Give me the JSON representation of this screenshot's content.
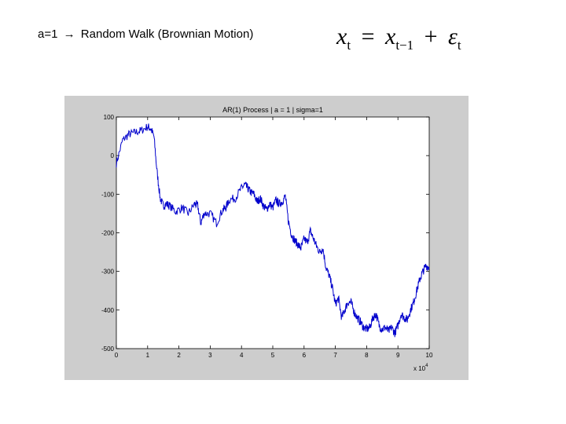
{
  "slide": {
    "heading_prefix": "a=1",
    "heading_arrow": "→",
    "heading_text": "Random Walk (Brownian Motion)",
    "formula": {
      "lhs_var": "x",
      "lhs_sub": "t",
      "equals": "=",
      "rhs_var": "x",
      "rhs_sub": "t−1",
      "plus": "+",
      "noise_var": "ε",
      "noise_sub": "t"
    }
  },
  "chart_data": {
    "type": "line",
    "title": "AR(1) Process    |    a = 1    |    sigma=1",
    "xlim": [
      0,
      100000
    ],
    "ylim": [
      -500,
      100
    ],
    "xticks": [
      0,
      1,
      2,
      3,
      4,
      5,
      6,
      7,
      8,
      9,
      10
    ],
    "yticks": [
      100,
      0,
      -100,
      -200,
      -300,
      -400,
      -500
    ],
    "x_exponent_label": "x 10",
    "x_exponent_power": "4",
    "line_color": "#0000cc",
    "grid": false,
    "series": [
      {
        "x": [
          0,
          2000,
          4000,
          6000,
          8000,
          10000,
          11000,
          12000,
          13000,
          14000,
          15000,
          16000,
          17000,
          19000,
          21000,
          23000,
          25000,
          26000,
          27000,
          28000,
          30000,
          32000,
          34000,
          35000,
          36000,
          38000,
          40000,
          41000,
          42000,
          43000,
          44000,
          45000,
          46000,
          47000,
          48000,
          49000,
          50000,
          51000,
          52000,
          53000,
          54000,
          55000,
          56000,
          57000,
          58000,
          59000,
          60000,
          61000,
          62000,
          63000,
          64000,
          65000,
          66000,
          67000,
          68000,
          69000,
          70000,
          71000,
          72000,
          73000,
          74000,
          75000,
          76000,
          77000,
          78000,
          79000,
          80000,
          81000,
          82000,
          83000,
          84000,
          85000,
          86000,
          87000,
          88000,
          89000,
          90000,
          91000,
          92000,
          93000,
          94000,
          95000,
          96000,
          97000,
          98000,
          99000,
          100000
        ],
        "y": [
          -20,
          40,
          55,
          60,
          65,
          75,
          70,
          50,
          -40,
          -110,
          -130,
          -125,
          -130,
          -145,
          -135,
          -150,
          -125,
          -130,
          -175,
          -150,
          -150,
          -175,
          -140,
          -135,
          -115,
          -110,
          -85,
          -75,
          -85,
          -95,
          -100,
          -120,
          -110,
          -130,
          -140,
          -125,
          -135,
          -115,
          -125,
          -120,
          -105,
          -170,
          -205,
          -220,
          -230,
          -240,
          -215,
          -225,
          -195,
          -215,
          -235,
          -250,
          -240,
          -290,
          -310,
          -340,
          -385,
          -370,
          -420,
          -400,
          -380,
          -380,
          -405,
          -420,
          -430,
          -445,
          -450,
          -445,
          -420,
          -410,
          -440,
          -450,
          -445,
          -455,
          -445,
          -460,
          -440,
          -410,
          -420,
          -425,
          -400,
          -380,
          -350,
          -320,
          -300,
          -285,
          -290
        ]
      }
    ]
  }
}
